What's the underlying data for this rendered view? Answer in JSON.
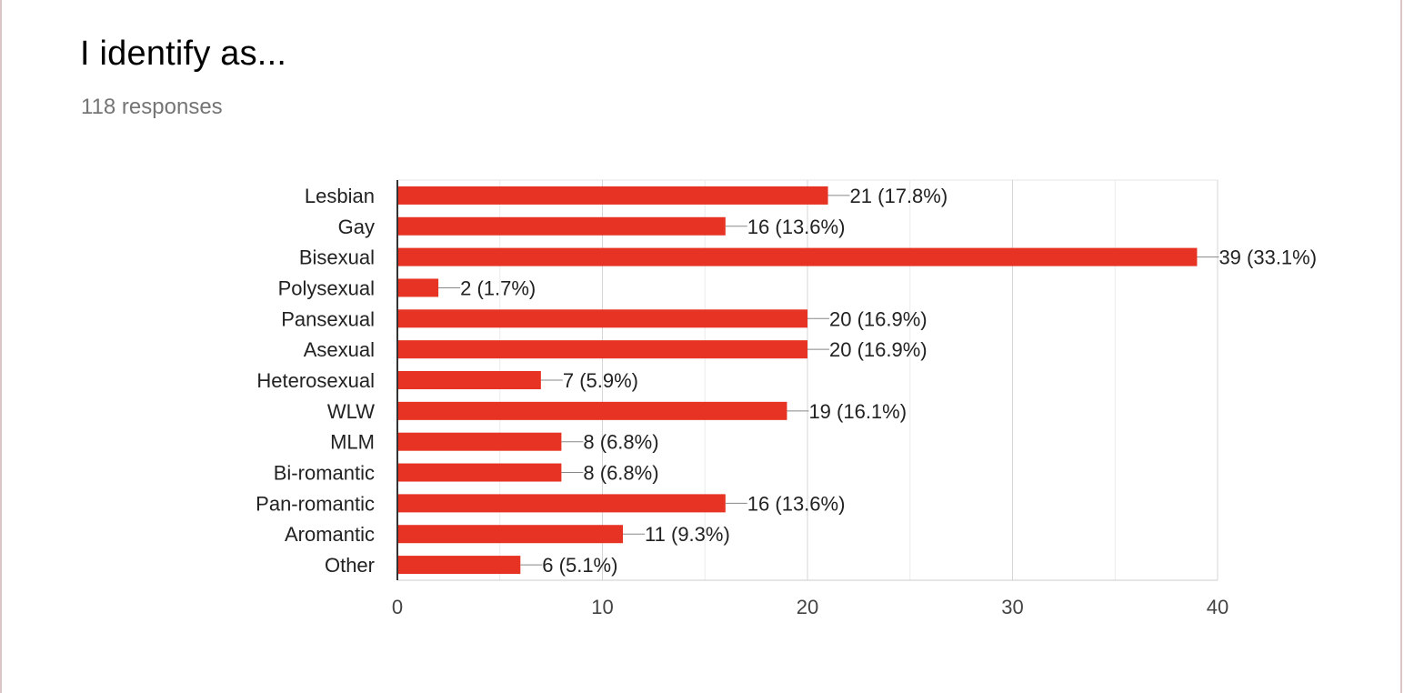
{
  "title": "I identify as...",
  "responses": "118 responses",
  "colors": {
    "bar": "#e63323",
    "grid": "#e6e6e6",
    "axis": "#333333",
    "leader": "#888888"
  },
  "chart_data": {
    "type": "bar",
    "orientation": "horizontal",
    "categories": [
      "Lesbian",
      "Gay",
      "Bisexual",
      "Polysexual",
      "Pansexual",
      "Asexual",
      "Heterosexual",
      "WLW",
      "MLM",
      "Bi-romantic",
      "Pan-romantic",
      "Aromantic",
      "Other"
    ],
    "values": [
      21,
      16,
      39,
      2,
      20,
      20,
      7,
      19,
      8,
      8,
      16,
      11,
      6
    ],
    "data_labels": [
      "21 (17.8%)",
      "16 (13.6%)",
      "39 (33.1%)",
      "2 (1.7%)",
      "20 (16.9%)",
      "20 (16.9%)",
      "7 (5.9%)",
      "19 (16.1%)",
      "8 (6.8%)",
      "8 (6.8%)",
      "16 (13.6%)",
      "11 (9.3%)",
      "6 (5.1%)"
    ],
    "xticks": [
      0,
      10,
      20,
      30,
      40
    ],
    "xlim": [
      0,
      40
    ],
    "grid": true,
    "title": "I identify as..."
  }
}
